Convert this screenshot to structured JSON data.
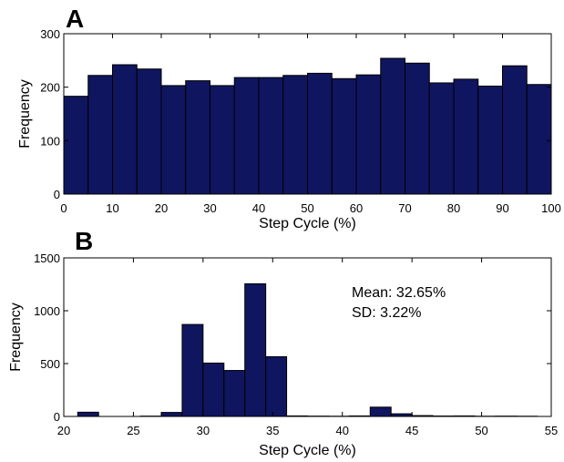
{
  "colors": {
    "bar": "#10155f",
    "background": "#ffffff"
  },
  "chart_data": [
    {
      "type": "bar",
      "panel_label": "A",
      "xlabel": "Step Cycle (%)",
      "ylabel": "Frequency",
      "xlim": [
        0,
        100
      ],
      "ylim": [
        0,
        300
      ],
      "xticks": [
        0,
        10,
        20,
        30,
        40,
        50,
        60,
        70,
        80,
        90,
        100
      ],
      "yticks": [
        0,
        100,
        200,
        300
      ],
      "bin_width": 5,
      "bin_starts": [
        0,
        5,
        10,
        15,
        20,
        25,
        30,
        35,
        40,
        45,
        50,
        55,
        60,
        65,
        70,
        75,
        80,
        85,
        90,
        95
      ],
      "values": [
        183,
        222,
        242,
        234,
        203,
        212,
        203,
        218,
        218,
        222,
        226,
        216,
        223,
        254,
        245,
        208,
        215,
        202,
        240,
        205
      ]
    },
    {
      "type": "bar",
      "panel_label": "B",
      "xlabel": "Step Cycle (%)",
      "ylabel": "Frequency",
      "xlim": [
        20,
        55
      ],
      "ylim": [
        0,
        1500
      ],
      "xticks": [
        20,
        25,
        30,
        35,
        40,
        45,
        50,
        55
      ],
      "yticks": [
        0,
        500,
        1000,
        1500
      ],
      "bin_width": 1.5,
      "bin_starts": [
        21,
        22.5,
        24,
        25.5,
        27,
        28.5,
        30,
        31.5,
        33,
        34.5,
        36,
        37.5,
        39,
        40.5,
        42,
        43.5,
        45,
        46.5,
        48,
        49.5,
        51,
        52.5
      ],
      "values": [
        40,
        0,
        0,
        3,
        38,
        870,
        505,
        435,
        1255,
        565,
        5,
        3,
        2,
        5,
        88,
        25,
        8,
        4,
        5,
        2,
        3,
        2
      ],
      "annotations": [
        "Mean: 32.65%",
        "SD: 3.22%"
      ]
    }
  ]
}
